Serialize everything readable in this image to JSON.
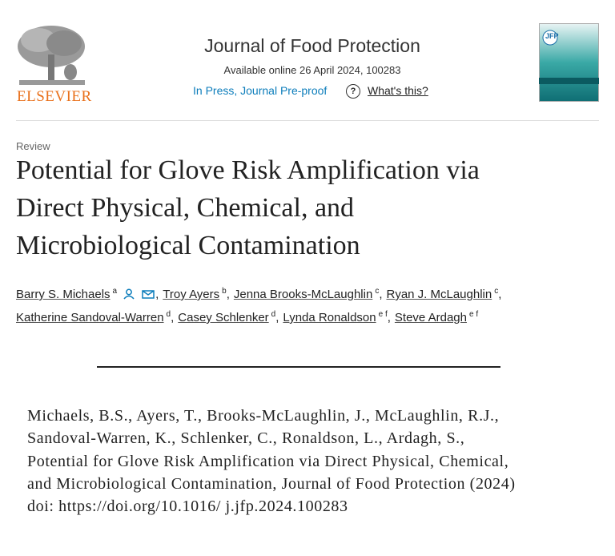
{
  "publisher": {
    "logo_text": "ELSEVIER"
  },
  "journal": {
    "title": "Journal of Food Protection",
    "availability": "Available online 26 April 2024, 100283",
    "status": "In Press, Journal Pre-proof",
    "help_link": "What's this?",
    "help_icon": "?"
  },
  "cover": {
    "label": "JFP"
  },
  "article": {
    "type": "Review",
    "title_lines": [
      "Potential for Glove Risk Amplification via",
      "Direct Physical, Chemical, and",
      "Microbiological Contamination"
    ]
  },
  "authors": {
    "separator": ",",
    "lines": [
      [
        {
          "name": "Barry S. Michaels",
          "affil": "a",
          "icons": true
        },
        {
          "name": "Troy Ayers",
          "affil": "b"
        },
        {
          "name": "Jenna Brooks-McLaughlin",
          "affil": "c"
        },
        {
          "name": "Ryan J. McLaughlin",
          "affil": "c"
        }
      ],
      [
        {
          "name": "Katherine Sandoval-Warren",
          "affil": "d"
        },
        {
          "name": "Casey Schlenker",
          "affil": "d"
        },
        {
          "name": "Lynda Ronaldson",
          "affil": "e f"
        },
        {
          "name": "Steve Ardagh",
          "affil": "e f"
        }
      ]
    ]
  },
  "citation": {
    "lines": [
      "Michaels, B.S., Ayers, T., Brooks-McLaughlin, J., McLaughlin, R.J.,",
      "Sandoval-Warren, K., Schlenker, C., Ronaldson, L., Ardagh, S.,",
      "Potential for Glove Risk Amplification via Direct Physical, Chemical,",
      "and Microbiological Contamination, Journal of Food Protection (2024)",
      "doi: https://doi.org/10.1016/ j.jfp.2024.100283"
    ]
  }
}
